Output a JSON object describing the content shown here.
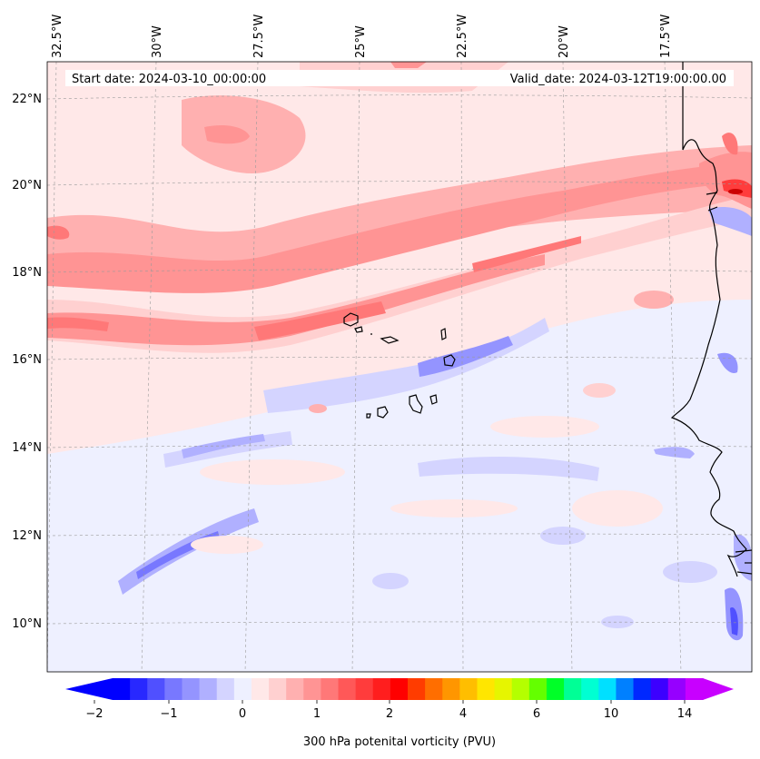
{
  "map": {
    "region": "Eastern tropical Atlantic / Cape Verde / West African coast",
    "lon_labels": [
      "32.5°W",
      "30°W",
      "27.5°W",
      "25°W",
      "22.5°W",
      "20°W",
      "17.5°W"
    ],
    "lat_labels": [
      "22°N",
      "20°N",
      "18°N",
      "16°N",
      "14°N",
      "12°N",
      "10°N"
    ],
    "start_date_text": "Start date: 2024-03-10_00:00:00",
    "valid_date_text": "Valid_date: 2024-03-12T19:00:00.00"
  },
  "colorbar": {
    "title": "300 hPa potenital vorticity (PVU)",
    "tick_labels": [
      "−2",
      "−1",
      "0",
      "1",
      "2",
      "4",
      "6",
      "10",
      "14"
    ],
    "colors": [
      "#0000ff",
      "#2828ff",
      "#5050ff",
      "#7878ff",
      "#9494ff",
      "#b0b0ff",
      "#d4d4ff",
      "#eef0ff",
      "#ffe8e8",
      "#ffd0d0",
      "#ffb0b0",
      "#ff9494",
      "#ff7878",
      "#ff5858",
      "#ff3c3c",
      "#ff1e1e",
      "#ff0000",
      "#ff3c00",
      "#ff6e00",
      "#ff9600",
      "#ffbe00",
      "#ffe600",
      "#e6f500",
      "#b4ff00",
      "#64ff00",
      "#00ff28",
      "#00ff96",
      "#00ffd2",
      "#00e0ff",
      "#0080ff",
      "#0028ff",
      "#3c00ff",
      "#9600ff",
      "#c800ff"
    ],
    "extend_min_color": "#0000ff",
    "extend_max_color": "#c800ff"
  }
}
